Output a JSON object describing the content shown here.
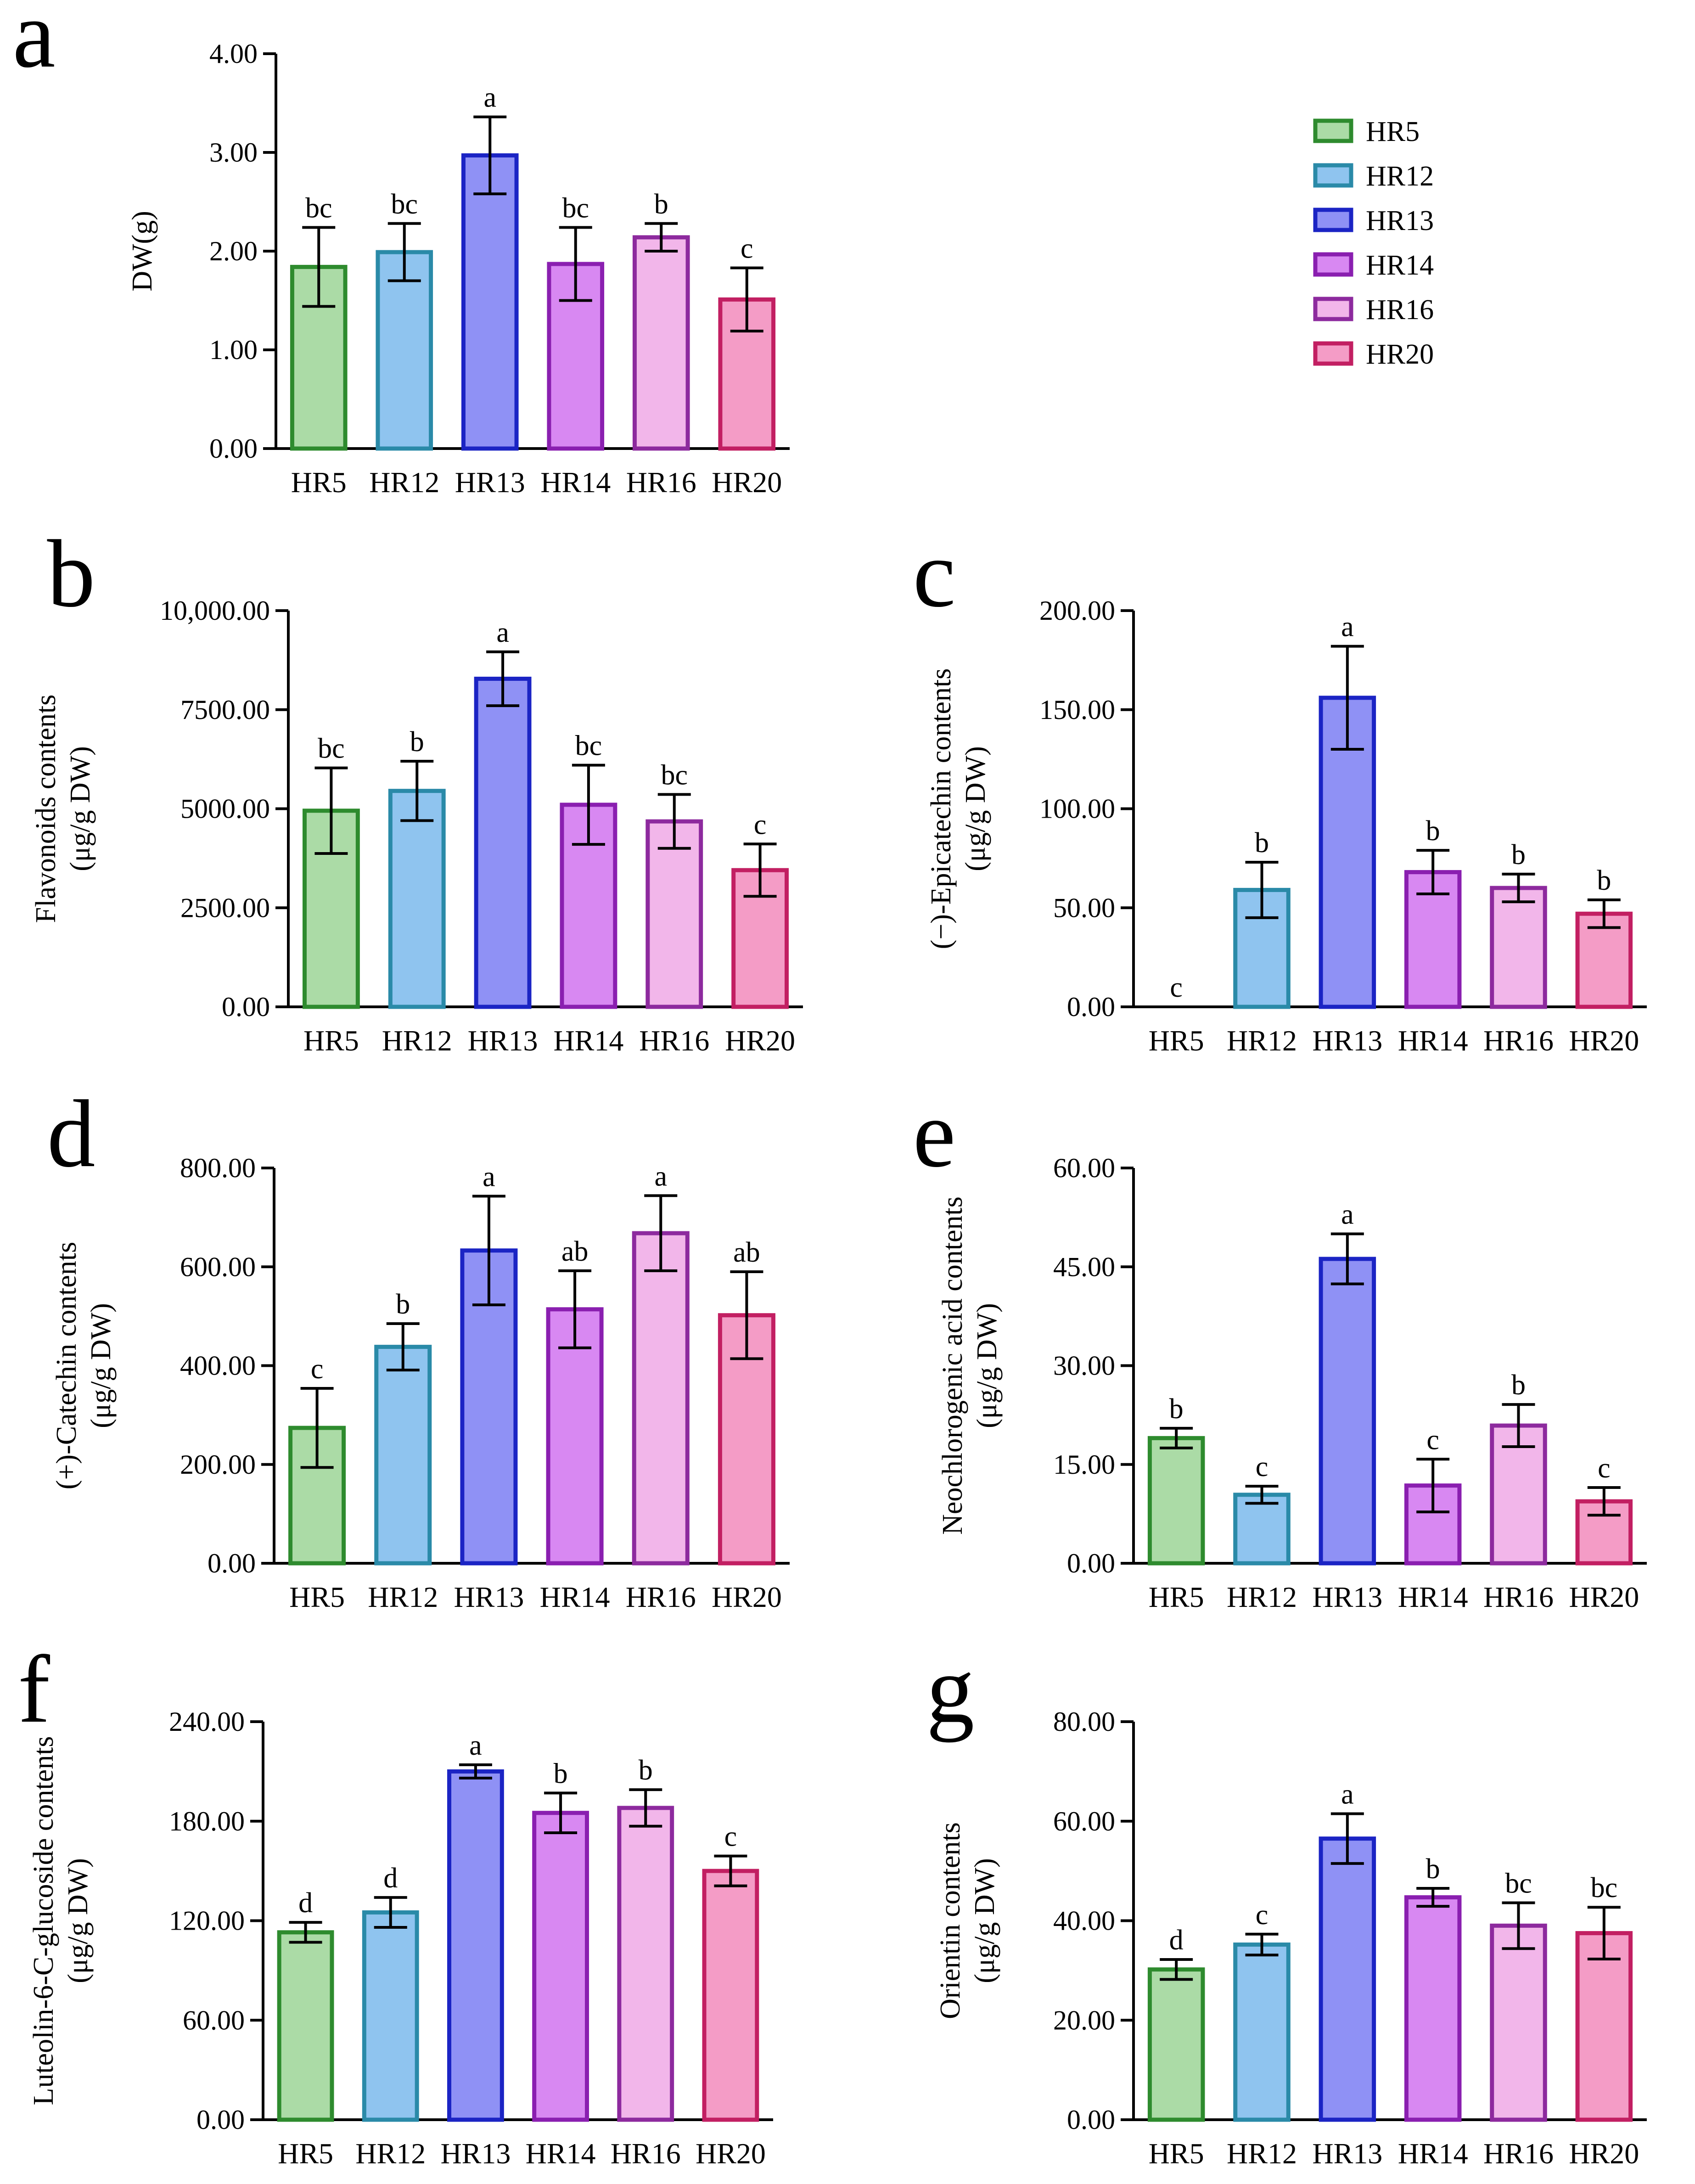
{
  "figure": {
    "panel_letters": [
      "a",
      "b",
      "c",
      "d",
      "e",
      "f",
      "g"
    ]
  },
  "legend": {
    "items": [
      {
        "label": "HR5",
        "fill": "#abdba6",
        "stroke": "#2e8b2e"
      },
      {
        "label": "HR12",
        "fill": "#8fc4ef",
        "stroke": "#2a8aa8"
      },
      {
        "label": "HR13",
        "fill": "#8f91f5",
        "stroke": "#1b24c4"
      },
      {
        "label": "HR14",
        "fill": "#d888f2",
        "stroke": "#8a1fb0"
      },
      {
        "label": "HR16",
        "fill": "#f2b6ea",
        "stroke": "#8d2a9e"
      },
      {
        "label": "HR20",
        "fill": "#f49cc6",
        "stroke": "#c21f62"
      }
    ]
  },
  "chart_data": [
    {
      "panel": "a",
      "type": "bar",
      "title": "",
      "xlabel": "",
      "ylabel": "DW(g)",
      "ylim": [
        0,
        4
      ],
      "yticks": [
        0,
        1,
        2,
        3,
        4
      ],
      "ytick_labels": [
        "0.00",
        "1.00",
        "2.00",
        "3.00",
        "4.00"
      ],
      "categories": [
        "HR5",
        "HR12",
        "HR13",
        "HR14",
        "HR16",
        "HR20"
      ],
      "values": [
        1.84,
        1.99,
        2.97,
        1.87,
        2.14,
        1.51
      ],
      "errors": [
        0.4,
        0.29,
        0.39,
        0.37,
        0.14,
        0.32
      ],
      "significance": [
        "bc",
        "bc",
        "a",
        "bc",
        "b",
        "c"
      ]
    },
    {
      "panel": "b",
      "type": "bar",
      "title": "",
      "xlabel": "",
      "ylabel": "Flavonoids contents",
      "ylabel2": "(μg/g DW)",
      "ylim": [
        0,
        10000
      ],
      "yticks": [
        0,
        2500,
        5000,
        7500,
        10000
      ],
      "ytick_labels": [
        "0.00",
        "2500.00",
        "5000.00",
        "7500.00",
        "10,000.00"
      ],
      "categories": [
        "HR5",
        "HR12",
        "HR13",
        "HR14",
        "HR16",
        "HR20"
      ],
      "values": [
        4950,
        5450,
        8280,
        5100,
        4680,
        3450
      ],
      "errors": [
        1080,
        750,
        680,
        1000,
        680,
        660
      ],
      "significance": [
        "bc",
        "b",
        "a",
        "bc",
        "bc",
        "c"
      ]
    },
    {
      "panel": "c",
      "type": "bar",
      "title": "",
      "xlabel": "",
      "ylabel": "(−)-Epicatechin contents",
      "ylabel2": "(μg/g DW)",
      "ylim": [
        0,
        200
      ],
      "yticks": [
        0,
        50,
        100,
        150,
        200
      ],
      "ytick_labels": [
        "0.00",
        "50.00",
        "100.00",
        "150.00",
        "200.00"
      ],
      "categories": [
        "HR5",
        "HR12",
        "HR13",
        "HR14",
        "HR16",
        "HR20"
      ],
      "values": [
        0,
        59,
        156,
        68,
        60,
        47
      ],
      "errors": [
        0,
        14,
        26,
        11,
        7,
        7
      ],
      "significance": [
        "c",
        "b",
        "a",
        "b",
        "b",
        "b"
      ]
    },
    {
      "panel": "d",
      "type": "bar",
      "title": "",
      "xlabel": "",
      "ylabel": "(+)-Catechin contents",
      "ylabel2": "(μg/g DW)",
      "ylim": [
        0,
        800
      ],
      "yticks": [
        0,
        200,
        400,
        600,
        800
      ],
      "ytick_labels": [
        "0.00",
        "200.00",
        "400.00",
        "600.00",
        "800.00"
      ],
      "categories": [
        "HR5",
        "HR12",
        "HR13",
        "HR14",
        "HR16",
        "HR20"
      ],
      "values": [
        274,
        438,
        633,
        514,
        668,
        502
      ],
      "errors": [
        80,
        47,
        110,
        78,
        76,
        88
      ],
      "significance": [
        "c",
        "b",
        "a",
        "ab",
        "a",
        "ab"
      ]
    },
    {
      "panel": "e",
      "type": "bar",
      "title": "",
      "xlabel": "",
      "ylabel": "Neochlorogenic acid contents",
      "ylabel2": "(μg/g DW)",
      "ylim": [
        0,
        60
      ],
      "yticks": [
        0,
        15,
        30,
        45,
        60
      ],
      "ytick_labels": [
        "0.00",
        "15.00",
        "30.00",
        "45.00",
        "60.00"
      ],
      "categories": [
        "HR5",
        "HR12",
        "HR13",
        "HR14",
        "HR16",
        "HR20"
      ],
      "values": [
        19.0,
        10.4,
        46.2,
        11.8,
        20.9,
        9.4
      ],
      "errors": [
        1.5,
        1.3,
        3.8,
        4.0,
        3.2,
        2.1
      ],
      "significance": [
        "b",
        "c",
        "a",
        "c",
        "b",
        "c"
      ]
    },
    {
      "panel": "f",
      "type": "bar",
      "title": "",
      "xlabel": "",
      "ylabel": "Luteolin-6-C-glucoside contents",
      "ylabel2": "(μg/g DW)",
      "ylim": [
        0,
        240
      ],
      "yticks": [
        0,
        60,
        120,
        180,
        240
      ],
      "ytick_labels": [
        "0.00",
        "60.00",
        "120.00",
        "180.00",
        "240.00"
      ],
      "categories": [
        "HR5",
        "HR12",
        "HR13",
        "HR14",
        "HR16",
        "HR20"
      ],
      "values": [
        113,
        125,
        210,
        185,
        188,
        150
      ],
      "errors": [
        6,
        9,
        4,
        12,
        11,
        9
      ],
      "significance": [
        "d",
        "d",
        "a",
        "b",
        "b",
        "c"
      ]
    },
    {
      "panel": "g",
      "type": "bar",
      "title": "",
      "xlabel": "",
      "ylabel": "Orientin contents",
      "ylabel2": "(μg/g DW)",
      "ylim": [
        0,
        80
      ],
      "yticks": [
        0,
        20,
        40,
        60,
        80
      ],
      "ytick_labels": [
        "0.00",
        "20.00",
        "40.00",
        "60.00",
        "80.00"
      ],
      "categories": [
        "HR5",
        "HR12",
        "HR13",
        "HR14",
        "HR16",
        "HR20"
      ],
      "values": [
        30.2,
        35.2,
        56.5,
        44.7,
        39.0,
        37.5
      ],
      "errors": [
        2.0,
        2.1,
        5.0,
        1.8,
        4.6,
        5.2
      ],
      "significance": [
        "d",
        "c",
        "a",
        "b",
        "bc",
        "bc"
      ]
    }
  ]
}
